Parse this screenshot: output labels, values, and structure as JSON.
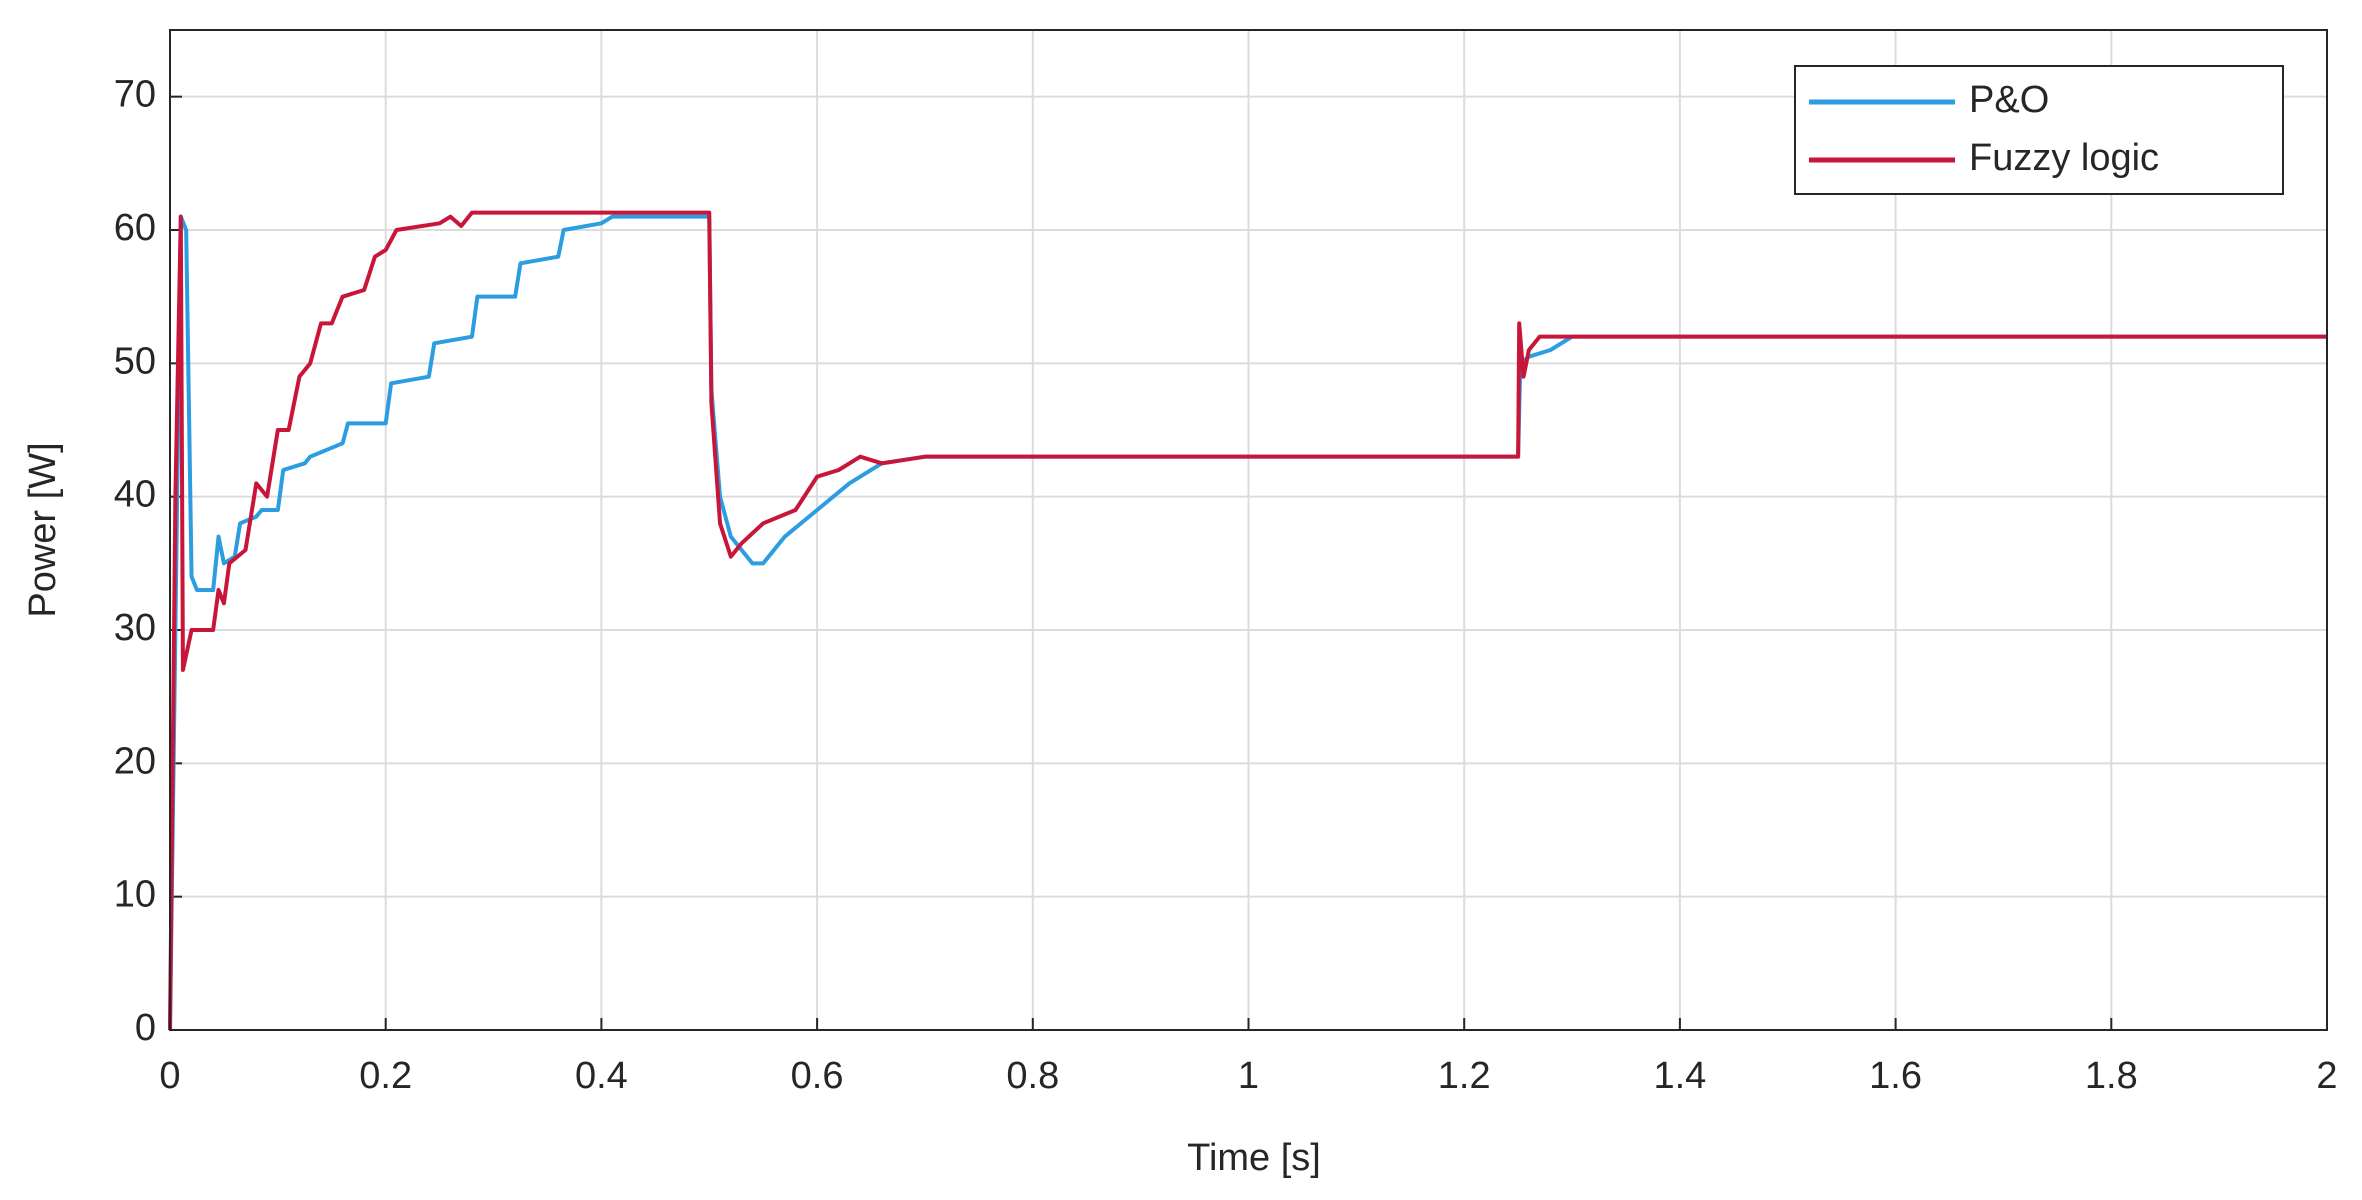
{
  "chart_data": {
    "type": "line",
    "x_label": "Time [s]",
    "y_label": "Power [W]",
    "xlim": [
      0,
      2
    ],
    "xticks": [
      0,
      0.2,
      0.4,
      0.6,
      0.8,
      1,
      1.2,
      1.4,
      1.6,
      1.8,
      2
    ],
    "ylim": [
      0,
      75
    ],
    "yticks": [
      0,
      10,
      20,
      30,
      40,
      50,
      60,
      70
    ],
    "grid": true,
    "legend": "upper right",
    "series": [
      {
        "name": "P&O",
        "color": "#2b9de0",
        "x": [
          0,
          0.005,
          0.01,
          0.015,
          0.02,
          0.025,
          0.04,
          0.045,
          0.05,
          0.06,
          0.065,
          0.08,
          0.085,
          0.1,
          0.105,
          0.125,
          0.13,
          0.16,
          0.165,
          0.2,
          0.205,
          0.24,
          0.245,
          0.28,
          0.285,
          0.32,
          0.325,
          0.36,
          0.365,
          0.4,
          0.41,
          0.5,
          0.502,
          0.51,
          0.52,
          0.53,
          0.54,
          0.55,
          0.57,
          0.6,
          0.63,
          0.66,
          0.7,
          1.25,
          1.252,
          1.26,
          1.28,
          1.3,
          2
        ],
        "values": [
          0,
          30,
          61,
          60,
          34,
          33,
          33,
          37,
          35,
          35.5,
          38,
          38.5,
          39,
          39,
          42,
          42.5,
          43,
          44,
          45.5,
          45.5,
          48.5,
          49,
          51.5,
          52,
          55,
          55,
          57.5,
          58,
          60,
          60.5,
          61,
          61,
          48,
          40,
          37,
          36,
          35,
          35,
          37,
          39,
          41,
          42.5,
          43,
          43,
          50,
          50.5,
          51,
          52,
          52
        ]
      },
      {
        "name": "Fuzzy logic",
        "color": "#c8163a",
        "x": [
          0,
          0.005,
          0.01,
          0.012,
          0.02,
          0.04,
          0.045,
          0.05,
          0.055,
          0.07,
          0.08,
          0.09,
          0.1,
          0.11,
          0.12,
          0.13,
          0.14,
          0.15,
          0.16,
          0.18,
          0.19,
          0.2,
          0.21,
          0.25,
          0.26,
          0.27,
          0.28,
          0.5,
          0.502,
          0.51,
          0.52,
          0.53,
          0.55,
          0.58,
          0.6,
          0.62,
          0.64,
          0.66,
          0.7,
          1.25,
          1.251,
          1.255,
          1.26,
          1.27,
          2
        ],
        "values": [
          0,
          40,
          61,
          27,
          30,
          30,
          33,
          32,
          35,
          36,
          41,
          40,
          45,
          45,
          49,
          50,
          53,
          53,
          55,
          55.5,
          58,
          58.5,
          60,
          60.5,
          61,
          60.3,
          61.3,
          61.3,
          47,
          38,
          35.5,
          36.5,
          38,
          39,
          41.5,
          42,
          43,
          42.5,
          43,
          43,
          53,
          49,
          51,
          52,
          52
        ]
      }
    ]
  }
}
